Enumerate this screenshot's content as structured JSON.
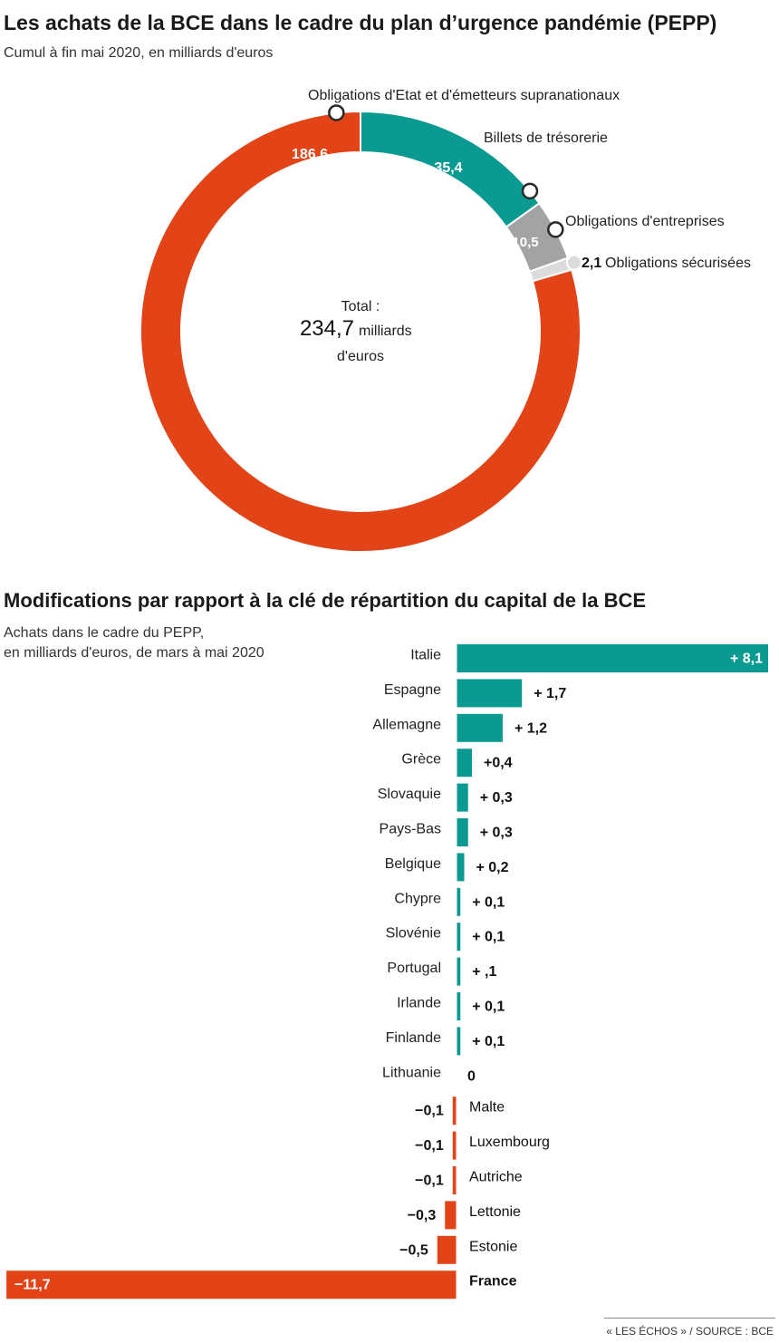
{
  "header": {
    "title": "Les achats de la BCE dans le cadre du plan d’urgence pandémie (PEPP)",
    "subtitle": "Cumul à fin mai 2020, en milliards d'euros"
  },
  "colors": {
    "red": "#e24418",
    "teal": "#0a9a92",
    "gray": "#a3a3a3",
    "light": "#dcdcdc"
  },
  "chart_data": [
    {
      "type": "pie",
      "variant": "donut",
      "slices": [
        {
          "label": "Obligations d'Etat et d'émetteurs supranationaux",
          "value": 186.6,
          "value_text": "186,6",
          "color": "#e24418"
        },
        {
          "label": "Billets de trésorerie",
          "value": 35.4,
          "value_text": "35,4",
          "color": "#0a9a92"
        },
        {
          "label": "Obligations d'entreprises",
          "value": 10.5,
          "value_text": "10,5",
          "color": "#a3a3a3"
        },
        {
          "label": "Obligations sécurisées",
          "value": 2.1,
          "value_text": "2,1",
          "color": "#dcdcdc"
        }
      ],
      "center": {
        "label": "Total :",
        "value": "234,7",
        "unit": "milliards",
        "unit2": "d'euros"
      }
    },
    {
      "type": "bar",
      "orientation": "horizontal",
      "title": "Modifications par rapport à la clé de répartition du capital de la BCE",
      "subtitle_lines": [
        "Achats dans le cadre du PEPP,",
        "en milliards d'euros, de mars à mai 2020"
      ],
      "categories": [
        "Italie",
        "Espagne",
        "Allemagne",
        "Grèce",
        "Slovaquie",
        "Pays-Bas",
        "Belgique",
        "Chypre",
        "Slovénie",
        "Portugal",
        "Irlande",
        "Finlande",
        "Lithuanie",
        "Malte",
        "Luxembourg",
        "Autriche",
        "Lettonie",
        "Estonie",
        "France"
      ],
      "values": [
        8.1,
        1.7,
        1.2,
        0.4,
        0.3,
        0.3,
        0.2,
        0.1,
        0.1,
        0.1,
        0.1,
        0.1,
        0,
        -0.1,
        -0.1,
        -0.1,
        -0.3,
        -0.5,
        -11.7
      ],
      "value_labels": [
        "+ 8,1",
        "+ 1,7",
        "+ 1,2",
        "+0,4",
        "+ 0,3",
        "+ 0,3",
        "+ 0,2",
        "+ 0,1",
        "+ 0,1",
        "+ ,1",
        "+ 0,1",
        "+ 0,1",
        "0",
        "−0,1",
        "−0,1",
        "−0,1",
        "−0,3",
        "−0,5",
        "−11,7"
      ],
      "bold_categories": [
        "France"
      ],
      "positive_color": "#0a9a92",
      "negative_color": "#e24418"
    }
  ],
  "footer": {
    "source": "« LES ÉCHOS » / SOURCE : BCE"
  }
}
